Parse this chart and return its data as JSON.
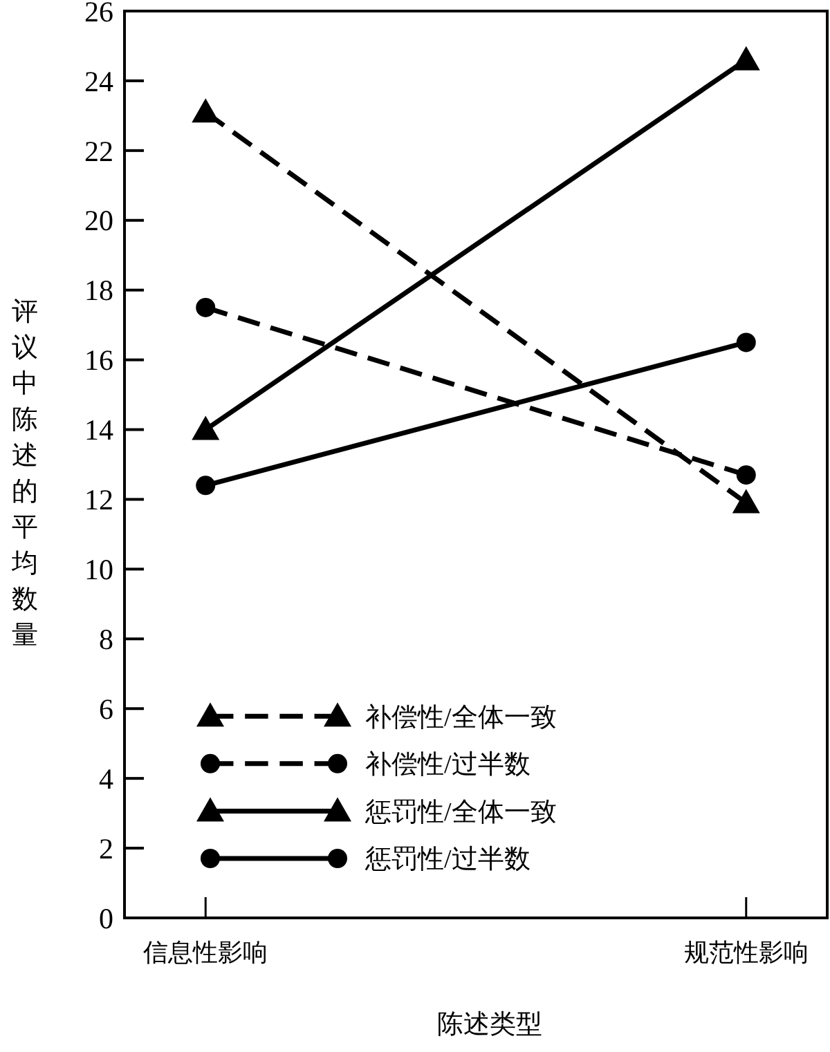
{
  "chart_data": {
    "type": "line",
    "xlabel": "陈述类型",
    "ylabel": "评议中陈述的平均数量",
    "categories": [
      "信息性影响",
      "规范性影响"
    ],
    "series": [
      {
        "name": "补偿性/全体一致",
        "color": "#000000",
        "values": [
          23.1,
          11.9
        ],
        "marker": "triangle",
        "line_style": "dashed"
      },
      {
        "name": "补偿性/过半数",
        "color": "#000000",
        "values": [
          17.5,
          12.7
        ],
        "marker": "circle",
        "line_style": "dashed"
      },
      {
        "name": "惩罚性/全体一致",
        "color": "#000000",
        "values": [
          14.0,
          24.6
        ],
        "marker": "triangle",
        "line_style": "solid"
      },
      {
        "name": "惩罚性/过半数",
        "color": "#000000",
        "values": [
          12.4,
          16.5
        ],
        "marker": "circle",
        "line_style": "solid"
      }
    ],
    "ylim": [
      0,
      26
    ],
    "yticks": [
      0,
      2,
      4,
      6,
      8,
      10,
      12,
      14,
      16,
      18,
      20,
      22,
      24,
      26
    ],
    "legend": "bottom left"
  }
}
